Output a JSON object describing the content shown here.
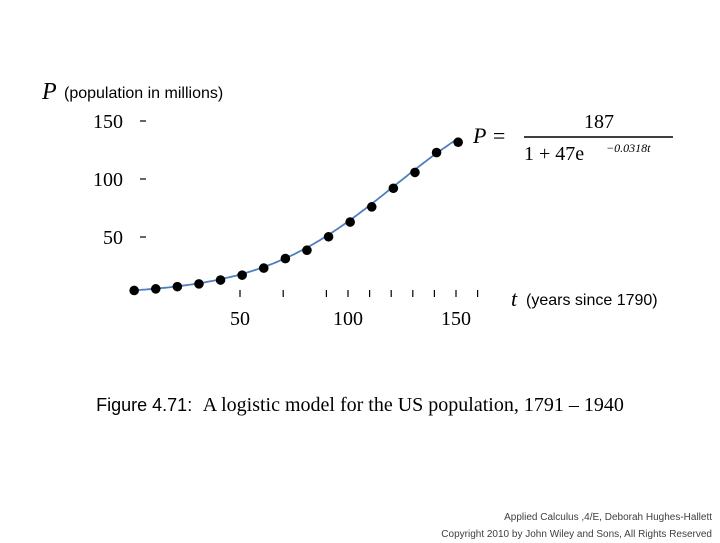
{
  "chart_data": {
    "type": "scatter",
    "title": "",
    "ylabel_var": "P",
    "ylabel_text": "(population in millions)",
    "xlabel_var": "t",
    "xlabel_text": "(years since 1790)",
    "xlim": [
      0,
      160
    ],
    "ylim": [
      0,
      160
    ],
    "x_tick_labels": [
      "50",
      "100",
      "150"
    ],
    "x_tick_values": [
      50,
      100,
      150
    ],
    "x_minor_ticks": [
      70,
      90,
      100,
      110,
      120,
      130,
      140,
      150,
      160
    ],
    "y_tick_labels": [
      "50",
      "100",
      "150"
    ],
    "y_tick_values": [
      50,
      100,
      150
    ],
    "formula": {
      "lhs": "P =",
      "numerator": "187",
      "denominator": "1 + 47e",
      "exponent": "−0.0318t"
    },
    "model": {
      "L": 187,
      "A": 47,
      "k": 0.0318
    },
    "colors": {
      "points": "#000000",
      "curve": "#4f7fbf"
    },
    "series": [
      {
        "x": [
          1,
          11,
          21,
          31,
          41,
          51,
          61,
          71,
          81,
          91,
          101,
          111,
          121,
          131,
          141,
          151
        ],
        "y": [
          3.9,
          5.3,
          7.2,
          9.6,
          12.9,
          17.1,
          23.2,
          31.4,
          38.6,
          50.2,
          62.9,
          76.0,
          92.0,
          105.7,
          122.8,
          131.7
        ]
      }
    ]
  },
  "caption": {
    "label": "Figure 4.71",
    "separator": ":",
    "text": "A logistic model for the US population, 1791 – 1940"
  },
  "footer": {
    "line1": "Applied Calculus ,4/E, Deborah Hughes-Hallett",
    "line2": "Copyright 2010 by John Wiley and Sons, All Rights Reserved"
  }
}
